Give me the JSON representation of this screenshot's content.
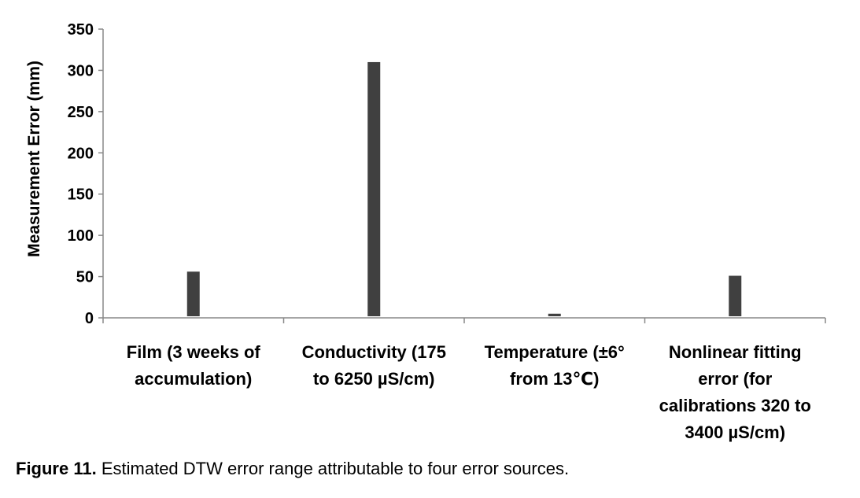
{
  "chart_data": {
    "type": "bar",
    "categories": [
      "Film (3 weeks of accumulation)",
      "Conductivity (175 to 6250 µS/cm)",
      "Temperature (±6° from 13℃)",
      "Nonlinear fitting error (for calibrations 320 to 3400 µS/cm)"
    ],
    "category_lines": [
      [
        "Film (3 weeks of",
        "accumulation)"
      ],
      [
        "Conductivity (175",
        "to 6250 µS/cm)"
      ],
      [
        "Temperature (±6°",
        "from 13℃)"
      ],
      [
        "Nonlinear fitting",
        "error (for",
        "calibrations 320 to",
        "3400 µS/cm)"
      ]
    ],
    "values": [
      56,
      310,
      5,
      51
    ],
    "ylabel": "Measurement Error (mm)",
    "ylim": [
      0,
      350
    ],
    "yticks": [
      "0",
      "50",
      "100",
      "150",
      "200",
      "250",
      "300",
      "350"
    ],
    "grid": false,
    "bar_color": "#404040"
  },
  "caption": {
    "label": "Figure 11.",
    "text": "Estimated DTW error range attributable to four error sources."
  }
}
